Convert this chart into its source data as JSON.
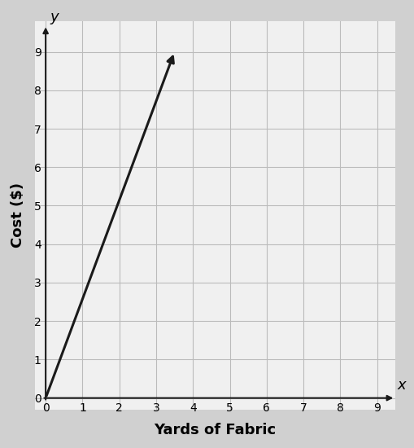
{
  "xlabel": "Yards of Fabric",
  "ylabel": "Cost ($)",
  "xlim": [
    -0.3,
    9.5
  ],
  "ylim": [
    -0.3,
    9.8
  ],
  "xticks": [
    0,
    1,
    2,
    3,
    4,
    5,
    6,
    7,
    8,
    9
  ],
  "yticks": [
    0,
    1,
    2,
    3,
    4,
    5,
    6,
    7,
    8,
    9
  ],
  "line_x": [
    0,
    3.5
  ],
  "line_y": [
    0,
    9
  ],
  "line_color": "#1a1a1a",
  "line_width": 2.2,
  "grid_color": "#bbbbbb",
  "plot_bg_color": "#f0f0f0",
  "outer_bg_color": "#d0d0d0",
  "axis_label_x": "x",
  "axis_label_y": "y",
  "arrow_color": "#1a1a1a",
  "tick_fontsize": 12,
  "label_fontsize": 13,
  "xlabel_fontsize": 13,
  "ylabel_fontsize": 13
}
